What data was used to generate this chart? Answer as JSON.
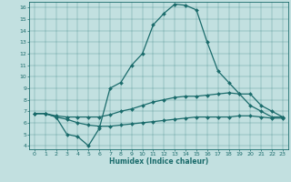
{
  "xlabel": "Humidex (Indice chaleur)",
  "bg_color": "#c2e0e0",
  "line_color": "#1a6b6b",
  "xlim": [
    -0.5,
    23.5
  ],
  "ylim": [
    3.7,
    16.5
  ],
  "xticks": [
    0,
    1,
    2,
    3,
    4,
    5,
    6,
    7,
    8,
    9,
    10,
    11,
    12,
    13,
    14,
    15,
    16,
    17,
    18,
    19,
    20,
    21,
    22,
    23
  ],
  "yticks": [
    4,
    5,
    6,
    7,
    8,
    9,
    10,
    11,
    12,
    13,
    14,
    15,
    16
  ],
  "line_main_x": [
    0,
    1,
    2,
    3,
    4,
    5,
    6,
    7,
    8,
    9,
    10,
    11,
    12,
    13,
    14,
    15,
    16,
    17,
    18,
    19,
    20,
    21,
    22,
    23
  ],
  "line_main_y": [
    6.8,
    6.8,
    6.5,
    5.0,
    4.8,
    4.0,
    5.5,
    9.0,
    9.5,
    11.0,
    12.0,
    14.5,
    15.5,
    16.3,
    16.2,
    15.8,
    13.0,
    10.5,
    9.5,
    8.5,
    7.5,
    7.0,
    6.5,
    6.5
  ],
  "line_upper_x": [
    0,
    1,
    2,
    3,
    4,
    5,
    6,
    7,
    8,
    9,
    10,
    11,
    12,
    13,
    14,
    15,
    16,
    17,
    18,
    19,
    20,
    21,
    22,
    23
  ],
  "line_upper_y": [
    6.8,
    6.8,
    6.6,
    6.5,
    6.5,
    6.5,
    6.5,
    6.7,
    7.0,
    7.2,
    7.5,
    7.8,
    8.0,
    8.2,
    8.3,
    8.3,
    8.4,
    8.5,
    8.6,
    8.5,
    8.5,
    7.5,
    7.0,
    6.5
  ],
  "line_lower_x": [
    0,
    1,
    2,
    3,
    4,
    5,
    6,
    7,
    8,
    9,
    10,
    11,
    12,
    13,
    14,
    15,
    16,
    17,
    18,
    19,
    20,
    21,
    22,
    23
  ],
  "line_lower_y": [
    6.8,
    6.8,
    6.5,
    6.3,
    6.0,
    5.8,
    5.7,
    5.7,
    5.8,
    5.9,
    6.0,
    6.1,
    6.2,
    6.3,
    6.4,
    6.5,
    6.5,
    6.5,
    6.5,
    6.6,
    6.6,
    6.5,
    6.4,
    6.4
  ]
}
